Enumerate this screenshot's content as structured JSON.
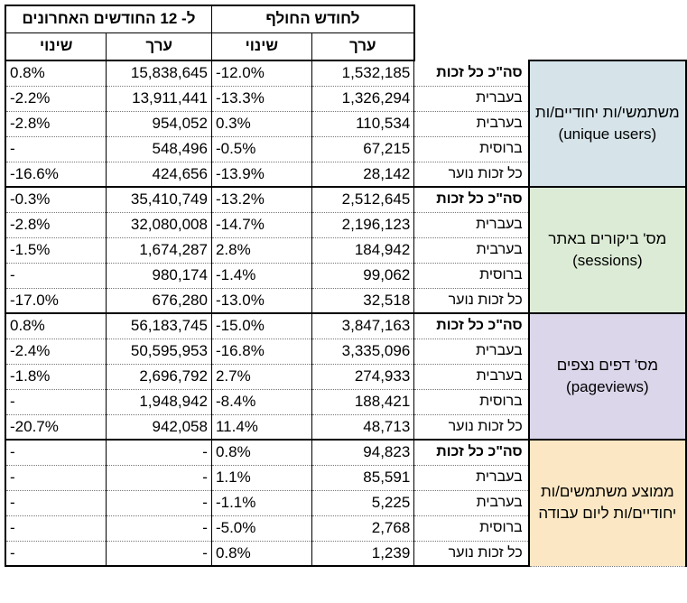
{
  "header": {
    "last_12_months": "ל- 12 החודשים האחרונים",
    "last_month": "לחודש החולף",
    "change": "שינוי",
    "value": "ערך"
  },
  "sections": [
    {
      "title": "משתמשי/ות יחודיים/ות (unique users)",
      "rows": [
        {
          "label": "סה\"כ כל זכות",
          "m_value": "1,532,185",
          "m_change": "-12.0%",
          "y_value": "15,838,645",
          "y_change": "0.8%"
        },
        {
          "label": "בעברית",
          "m_value": "1,326,294",
          "m_change": "-13.3%",
          "y_value": "13,911,441",
          "y_change": "-2.2%"
        },
        {
          "label": "בערבית",
          "m_value": "110,534",
          "m_change": "0.3%",
          "y_value": "954,052",
          "y_change": "-2.8%"
        },
        {
          "label": "ברוסית",
          "m_value": "67,215",
          "m_change": "-0.5%",
          "y_value": "548,496",
          "y_change": "-"
        },
        {
          "label": "כל זכות נוער",
          "m_value": "28,142",
          "m_change": "-13.9%",
          "y_value": "424,656",
          "y_change": "-16.6%"
        }
      ]
    },
    {
      "title": "מס' ביקורים באתר (sessions)",
      "rows": [
        {
          "label": "סה\"כ כל זכות",
          "m_value": "2,512,645",
          "m_change": "-13.2%",
          "y_value": "35,410,749",
          "y_change": "-0.3%"
        },
        {
          "label": "בעברית",
          "m_value": "2,196,123",
          "m_change": "-14.7%",
          "y_value": "32,080,008",
          "y_change": "-2.8%"
        },
        {
          "label": "בערבית",
          "m_value": "184,942",
          "m_change": "2.8%",
          "y_value": "1,674,287",
          "y_change": "-1.5%"
        },
        {
          "label": "ברוסית",
          "m_value": "99,062",
          "m_change": "-1.4%",
          "y_value": "980,174",
          "y_change": "-"
        },
        {
          "label": "כל זכות נוער",
          "m_value": "32,518",
          "m_change": "-13.0%",
          "y_value": "676,280",
          "y_change": "-17.0%"
        }
      ]
    },
    {
      "title": "מס' דפים נצפים (pageviews)",
      "rows": [
        {
          "label": "סה\"כ כל זכות",
          "m_value": "3,847,163",
          "m_change": "-15.0%",
          "y_value": "56,183,745",
          "y_change": "0.8%"
        },
        {
          "label": "בעברית",
          "m_value": "3,335,096",
          "m_change": "-16.8%",
          "y_value": "50,595,953",
          "y_change": "-2.4%"
        },
        {
          "label": "בערבית",
          "m_value": "274,933",
          "m_change": "2.7%",
          "y_value": "2,696,792",
          "y_change": "-1.8%"
        },
        {
          "label": "ברוסית",
          "m_value": "188,421",
          "m_change": "-8.4%",
          "y_value": "1,948,942",
          "y_change": "-"
        },
        {
          "label": "כל זכות נוער",
          "m_value": "48,713",
          "m_change": "11.4%",
          "y_value": "942,058",
          "y_change": "-20.7%"
        }
      ]
    },
    {
      "title": "ממוצע משתמשים/ות יחודיים/ות ליום עבודה",
      "rows": [
        {
          "label": "סה\"כ כל זכות",
          "m_value": "94,823",
          "m_change": "0.8%",
          "y_value": "-",
          "y_change": "-"
        },
        {
          "label": "בעברית",
          "m_value": "85,591",
          "m_change": "1.1%",
          "y_value": "-",
          "y_change": "-"
        },
        {
          "label": "בערבית",
          "m_value": "5,225",
          "m_change": "-1.1%",
          "y_value": "-",
          "y_change": "-"
        },
        {
          "label": "ברוסית",
          "m_value": "2,768",
          "m_change": "-5.0%",
          "y_value": "-",
          "y_change": "-"
        },
        {
          "label": "כל זכות נוער",
          "m_value": "1,239",
          "m_change": "0.8%",
          "y_value": "-",
          "y_change": "-"
        }
      ]
    }
  ]
}
